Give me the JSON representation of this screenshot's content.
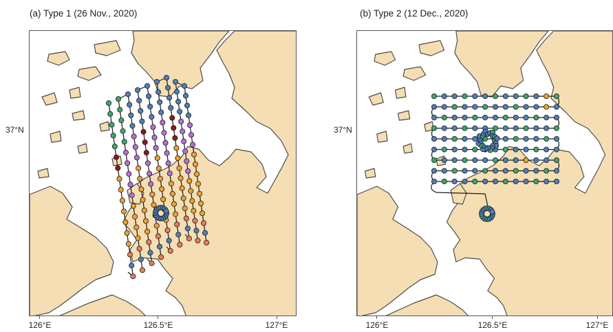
{
  "colors": {
    "land": "#f5deb3",
    "coast": "#4a4a4a",
    "track": "#1a1a1a",
    "blue": "#4f7fb8",
    "green": "#3aa86a",
    "purple": "#b86ed6",
    "darkred": "#8b1a1a",
    "orange": "#f0a030",
    "salmon": "#e87c5c"
  },
  "panels": [
    {
      "id": "type1",
      "title": "(a) Type 1 (26 Nov., 2020)",
      "lat_label": "37°N",
      "lon_labels": [
        "126°E",
        "126.5°E",
        "127°E"
      ],
      "pattern": "zigzag"
    },
    {
      "id": "type2",
      "title": "(b) Type 2 (12 Dec., 2020)",
      "lat_label": "37°N",
      "lon_labels": [
        "126°E",
        "126.5°E",
        "127°E"
      ],
      "pattern": "raster"
    }
  ]
}
